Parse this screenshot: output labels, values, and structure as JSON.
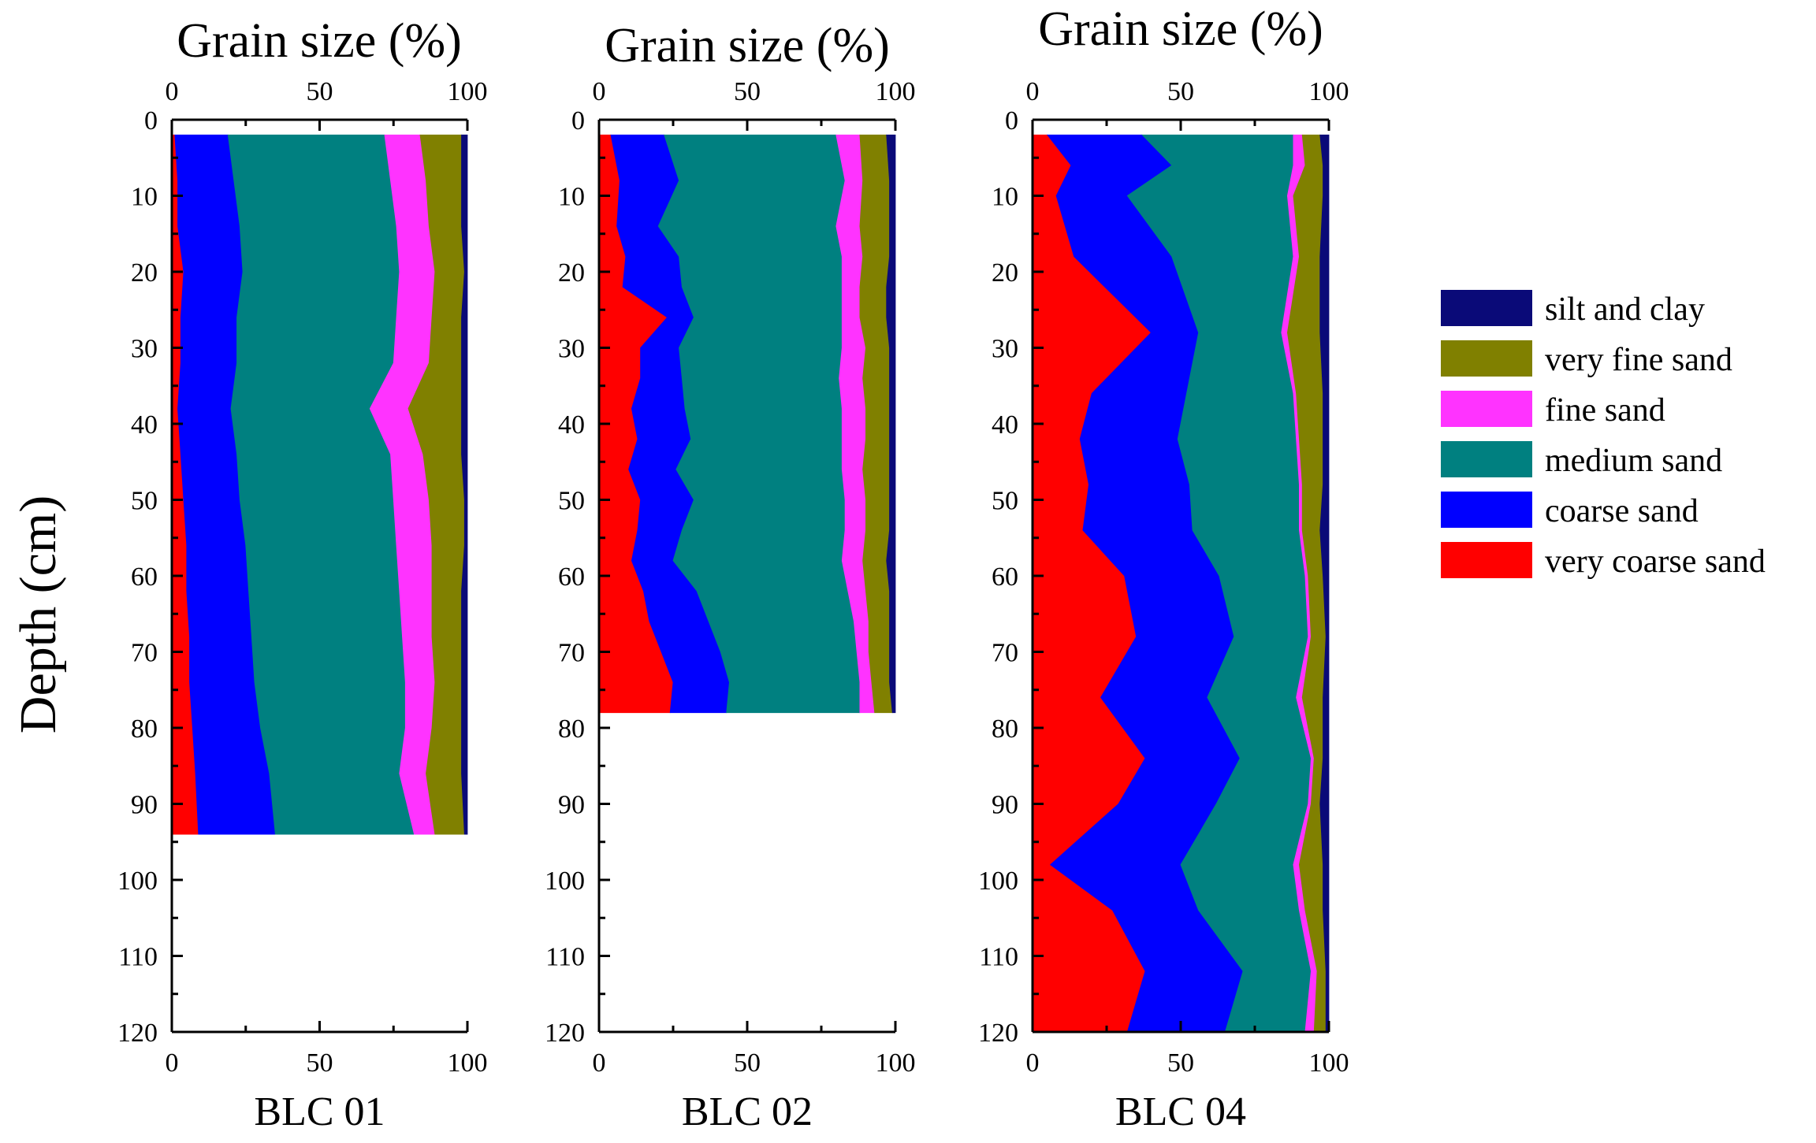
{
  "chart_data": {
    "type": "area",
    "ylabel": "Depth (cm)",
    "top_title": "Grain size (%)",
    "depth_ticks": [
      "0",
      "10",
      "20",
      "30",
      "40",
      "50",
      "60",
      "70",
      "80",
      "90",
      "100",
      "110",
      "120"
    ],
    "x_ticks": [
      "0",
      "50",
      "100"
    ],
    "ylim": [
      0,
      120
    ],
    "xlim": [
      0,
      100
    ],
    "legend": [
      {
        "name": "silt and clay",
        "color": "#0a0a78"
      },
      {
        "name": "very fine sand",
        "color": "#808000"
      },
      {
        "name": "fine sand",
        "color": "#ff33ff"
      },
      {
        "name": "medium sand",
        "color": "#008080"
      },
      {
        "name": "coarse sand",
        "color": "#0000ff"
      },
      {
        "name": "very coarse sand",
        "color": "#ff0000"
      }
    ],
    "panels": [
      {
        "name": "BLC 01",
        "depths": [
          2,
          8,
          14,
          20,
          26,
          32,
          38,
          44,
          50,
          56,
          62,
          68,
          74,
          80,
          86,
          94
        ],
        "cumulative": [
          [
            1,
            2,
            2,
            4,
            3,
            3,
            2,
            3,
            4,
            5,
            5,
            6,
            6,
            7,
            8,
            9
          ],
          [
            19,
            21,
            23,
            24,
            22,
            22,
            20,
            22,
            23,
            25,
            26,
            27,
            28,
            30,
            33,
            35
          ],
          [
            72,
            74,
            76,
            77,
            76,
            75,
            67,
            74,
            75,
            76,
            77,
            78,
            79,
            79,
            77,
            82
          ],
          [
            84,
            86,
            87,
            89,
            88,
            87,
            80,
            85,
            87,
            88,
            88,
            88,
            89,
            88,
            86,
            89
          ],
          [
            98,
            98,
            98,
            99,
            98,
            98,
            98,
            98,
            99,
            99,
            98,
            98,
            98,
            98,
            98,
            99
          ],
          [
            100,
            100,
            100,
            100,
            100,
            100,
            100,
            100,
            100,
            100,
            100,
            100,
            100,
            100,
            100,
            100
          ]
        ]
      },
      {
        "name": "BLC 02",
        "depths": [
          2,
          8,
          14,
          18,
          22,
          26,
          30,
          34,
          38,
          42,
          46,
          50,
          54,
          58,
          62,
          66,
          70,
          74,
          78
        ],
        "cumulative": [
          [
            4,
            7,
            6,
            9,
            8,
            23,
            14,
            14,
            11,
            13,
            10,
            14,
            13,
            11,
            15,
            17,
            21,
            25,
            24
          ],
          [
            22,
            27,
            20,
            27,
            28,
            32,
            27,
            28,
            29,
            31,
            26,
            32,
            28,
            25,
            33,
            37,
            41,
            44,
            43
          ],
          [
            80,
            83,
            80,
            82,
            82,
            82,
            82,
            81,
            82,
            82,
            82,
            83,
            83,
            82,
            84,
            86,
            87,
            88,
            88
          ],
          [
            88,
            89,
            88,
            89,
            88,
            88,
            90,
            89,
            90,
            90,
            89,
            90,
            90,
            89,
            90,
            91,
            91,
            92,
            93
          ],
          [
            97,
            98,
            98,
            98,
            97,
            97,
            98,
            98,
            98,
            98,
            98,
            98,
            98,
            97,
            98,
            98,
            98,
            98,
            99
          ],
          [
            100,
            100,
            100,
            100,
            100,
            100,
            100,
            100,
            100,
            100,
            100,
            100,
            100,
            100,
            100,
            100,
            100,
            100,
            100
          ]
        ]
      },
      {
        "name": "BLC 04",
        "depths": [
          2,
          6,
          10,
          18,
          28,
          36,
          42,
          48,
          54,
          60,
          68,
          76,
          84,
          90,
          98,
          104,
          112,
          120
        ],
        "cumulative": [
          [
            5,
            13,
            8,
            14,
            40,
            20,
            16,
            19,
            17,
            31,
            35,
            23,
            38,
            29,
            6,
            27,
            38,
            32
          ],
          [
            37,
            47,
            32,
            47,
            56,
            52,
            49,
            53,
            54,
            63,
            68,
            59,
            70,
            62,
            50,
            56,
            71,
            65
          ],
          [
            88,
            88,
            86,
            88,
            84,
            88,
            89,
            90,
            90,
            92,
            93,
            89,
            94,
            93,
            88,
            90,
            94,
            92
          ],
          [
            91,
            92,
            88,
            90,
            86,
            89,
            90,
            91,
            91,
            93,
            94,
            91,
            95,
            94,
            90,
            92,
            96,
            95
          ],
          [
            97,
            98,
            98,
            97,
            97,
            98,
            98,
            98,
            97,
            98,
            99,
            98,
            98,
            97,
            98,
            98,
            99,
            99
          ],
          [
            100,
            100,
            100,
            100,
            100,
            100,
            100,
            100,
            100,
            100,
            100,
            100,
            100,
            100,
            100,
            100,
            100,
            100
          ]
        ]
      }
    ]
  }
}
